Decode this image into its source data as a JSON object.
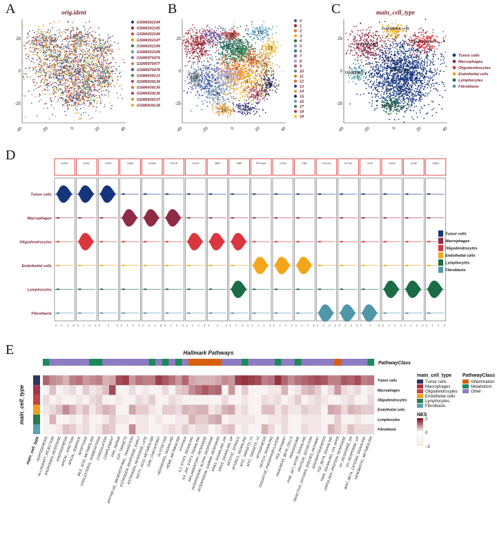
{
  "panels": {
    "A": {
      "letter": "A",
      "title": "orig.ident"
    },
    "B": {
      "letter": "B"
    },
    "C": {
      "letter": "C",
      "title": "main_cell_type"
    },
    "D": {
      "letter": "D"
    },
    "E": {
      "letter": "E"
    }
  },
  "chart_data": [
    {
      "type": "scatter",
      "panel": "A",
      "title": "orig.ident",
      "xlim": [
        -40,
        40
      ],
      "ylim": [
        -40,
        40
      ],
      "x_ticks": [
        "-40",
        "-20",
        "0",
        "20",
        "40"
      ],
      "y_ticks": [
        "-25",
        "0",
        "25"
      ],
      "legend_placement": "right",
      "series": [
        {
          "name": "GSM4202144",
          "color": "#2f3c7e"
        },
        {
          "name": "GSM4202145",
          "color": "#9b2a3a"
        },
        {
          "name": "GSM4202146",
          "color": "#c84a4a"
        },
        {
          "name": "GSM4202147",
          "color": "#e0a020"
        },
        {
          "name": "GSM4202149",
          "color": "#3a7a4a"
        },
        {
          "name": "GSM4202149",
          "color": "#5aa0b0"
        },
        {
          "name": "GSM5975476",
          "color": "#7a6aa8"
        },
        {
          "name": "GSM5975477",
          "color": "#d08040"
        },
        {
          "name": "GSM5975478",
          "color": "#3a5ba0"
        },
        {
          "name": "GSM6939133",
          "color": "#4a8a3a"
        },
        {
          "name": "GSM6939134",
          "color": "#b04a6a"
        },
        {
          "name": "GSM6939135",
          "color": "#e07030"
        },
        {
          "name": "GSM6939136",
          "color": "#8a4a8a"
        },
        {
          "name": "GSM6939137",
          "color": "#c0a040"
        },
        {
          "name": "GSM6939138",
          "color": "#e8a040"
        }
      ]
    },
    {
      "type": "scatter",
      "panel": "B",
      "xlim": [
        -40,
        40
      ],
      "ylim": [
        -40,
        40
      ],
      "x_ticks": [
        "-40",
        "-20",
        "0",
        "20",
        "40"
      ],
      "y_ticks": [
        "-25",
        "0",
        "25"
      ],
      "legend_placement": "right",
      "series": [
        {
          "name": "0",
          "color": "#3a5aa0"
        },
        {
          "name": "1",
          "color": "#9b2a3a"
        },
        {
          "name": "2",
          "color": "#e07030"
        },
        {
          "name": "3",
          "color": "#f0b020"
        },
        {
          "name": "4",
          "color": "#2a6a4a"
        },
        {
          "name": "5",
          "color": "#7090b0"
        },
        {
          "name": "6",
          "color": "#2a7a7a"
        },
        {
          "name": "7",
          "color": "#7a5aa0"
        },
        {
          "name": "8",
          "color": "#a8a0d0"
        },
        {
          "name": "9",
          "color": "#b04a6a"
        },
        {
          "name": "10",
          "color": "#6a7a8a"
        },
        {
          "name": "11",
          "color": "#c08a2a"
        },
        {
          "name": "12",
          "color": "#d86a2a"
        },
        {
          "name": "13",
          "color": "#3a3a7a"
        },
        {
          "name": "14",
          "color": "#e0a040"
        },
        {
          "name": "15",
          "color": "#2a2a5a"
        },
        {
          "name": "16",
          "color": "#5aa0c0"
        },
        {
          "name": "17",
          "color": "#3a8a5a"
        },
        {
          "name": "18",
          "color": "#c04040"
        },
        {
          "name": "19",
          "color": "#f0c040"
        }
      ],
      "cluster_labels": [
        "0",
        "1",
        "2",
        "3",
        "4",
        "5",
        "6",
        "7",
        "8",
        "9",
        "10",
        "11",
        "12",
        "13",
        "14",
        "15",
        "16",
        "17",
        "18",
        "19"
      ]
    },
    {
      "type": "scatter",
      "panel": "C",
      "title": "main_cell_type",
      "xlim": [
        -40,
        40
      ],
      "ylim": [
        -40,
        40
      ],
      "x_ticks": [
        "-40",
        "-20",
        "0",
        "20",
        "40"
      ],
      "y_ticks": [
        "-25",
        "0",
        "25"
      ],
      "legend_placement": "right",
      "series": [
        {
          "name": "Tumor cells",
          "color": "#16347a"
        },
        {
          "name": "Macrophages",
          "color": "#8f2b45"
        },
        {
          "name": "Oligodendrocytes",
          "color": "#d9363e"
        },
        {
          "name": "Endothelial cells",
          "color": "#f2a71b"
        },
        {
          "name": "Lymphocytes",
          "color": "#1b6b47"
        },
        {
          "name": "Fibroblasts",
          "color": "#4f97a8"
        }
      ],
      "cluster_annotations": [
        "Endothelial cells",
        "Macrophages",
        "Oligodendrocytes",
        "Fibroblasts",
        "Tumor cells",
        "Lymphocytes"
      ]
    },
    {
      "type": "violin",
      "panel": "D",
      "genes": [
        "EGFR",
        "SOX2",
        "GFAP",
        "CD68",
        "ITGAM",
        "CSF1R",
        "OLIG2",
        "MBP",
        "MBP",
        "PECAM1",
        "CDH5",
        "VWF",
        "COL1A1",
        "ACTA2",
        "DCN",
        "CD3D",
        "CD3E",
        "CD8A"
      ],
      "cell_types": [
        "Tumor cells",
        "Macrophages",
        "Oligodendrocytes",
        "Endothelial cells",
        "Lymphocytes",
        "Fibroblasts"
      ],
      "colors": [
        "#16347a",
        "#8f2b45",
        "#d9363e",
        "#f2a71b",
        "#1b6b47",
        "#4f97a8"
      ],
      "legend_placement": "right",
      "high_expression": [
        {
          "cell_type": "Tumor cells",
          "gene_index": [
            0,
            1,
            2
          ]
        },
        {
          "cell_type": "Macrophages",
          "gene_index": [
            3,
            4,
            5
          ]
        },
        {
          "cell_type": "Oligodendrocytes",
          "gene_index": [
            1,
            6,
            7,
            8
          ]
        },
        {
          "cell_type": "Endothelial cells",
          "gene_index": [
            9,
            10,
            11
          ]
        },
        {
          "cell_type": "Lymphocytes",
          "gene_index": [
            8,
            15,
            16,
            17
          ]
        },
        {
          "cell_type": "Fibroblasts",
          "gene_index": [
            12,
            13,
            14
          ]
        }
      ],
      "x_axis_labels": [
        [
          "0",
          "2",
          "4",
          "6"
        ],
        [
          "0",
          "1",
          "2",
          "3"
        ],
        [
          "0",
          "2",
          "4"
        ],
        [
          "0",
          "1",
          "2",
          "3"
        ],
        [
          "0",
          "2",
          "4",
          "6"
        ],
        [
          "0",
          "1",
          "2",
          "3"
        ],
        [
          "0",
          "1",
          "2",
          "3"
        ],
        [
          "0",
          "2",
          "4"
        ],
        [
          "0",
          "2",
          "4",
          "6"
        ],
        [
          "0",
          "1",
          "2",
          "3"
        ],
        [
          "0",
          "1",
          "2",
          "3"
        ],
        [
          "0",
          "1",
          "2",
          "3"
        ],
        [
          "0",
          "2",
          "4",
          "6"
        ],
        [
          "0",
          "2",
          "4",
          "6"
        ],
        [
          "0",
          "2",
          "4"
        ],
        [
          "0",
          "1",
          "2",
          "3"
        ],
        [
          "0",
          "1",
          "2",
          "3"
        ],
        [
          "0",
          "1",
          "2",
          "3"
        ]
      ]
    },
    {
      "type": "heatmap",
      "panel": "E",
      "title": "Hallmark Pathways",
      "row_annotation_title": "main_cell_type",
      "col_annotation_title": "PathwayClass",
      "rows": [
        "Tumor cells",
        "Macrophages",
        "Oligodendrocytes",
        "Endothelial cells",
        "Lymphocytes",
        "Fibroblasts"
      ],
      "row_colors": [
        "#2d3561",
        "#a83246",
        "#c84040",
        "#f0a020",
        "#2a7a4a",
        "#5aa0b0"
      ],
      "columns": [
        "ADIPOGENESIS",
        "ALLOGRAFT_REJECTION",
        "ANDROGEN_RESPONSE",
        "ANGIOGENESIS",
        "APICAL_JUNCTION",
        "APICAL_SURFACE",
        "APOPTOSIS",
        "BILE_ACID_METABOLISM",
        "CHOLESTEROL_HOMEOSTASIS",
        "COAGULATION",
        "COMPLEMENT",
        "DNA_REPAIR",
        "E2F_TARGETS",
        "EPITHELIAL_MESENCHYMAL_TRANSITION",
        "ESTROGEN_RESPONSE_EARLY",
        "ESTROGEN_RESPONSE_LATE",
        "FATTY_ACID_METABOLISM",
        "G2M_CHECKPOINT",
        "GLYCOLYSIS",
        "HEDGEHOG_SIGNALING",
        "HEME_METABOLISM",
        "HYPOXIA",
        "IL2_STAT5_SIGNALING",
        "IL6_JAK_STAT3_SIGNALING",
        "INFLAMMATORY_RESPONSE",
        "INTERFERON_ALPHA_RESPONSE",
        "INTERFERON_GAMMA_RESPONSE",
        "KRAS_SIGNALING_DN",
        "KRAS_SIGNALING_UP",
        "MITOTIC_SPINDLE",
        "MTORC1_SIGNALING",
        "MYC_TARGETS_V1",
        "MYC_TARGETS_V2",
        "MYOGENESIS",
        "NOTCH_SIGNALING",
        "OXIDATIVE_PHOSPHORYLATION",
        "P53_PATHWAY",
        "PANCREAS_BETA_CELLS",
        "PEROXISOME",
        "PI3K_AKT_MTOR_SIGNALING",
        "PROTEIN_SECRETION",
        "REACTIVE_OXYGEN_SPECIES_PATHWAY",
        "SPERMATOGENESIS",
        "TGF_BETA_SIGNALING",
        "TNFA_SIGNALING_VIA_NFKB",
        "UNFOLDED_PROTEIN_RESPONSE",
        "UV_RESPONSE_DN",
        "UV_RESPONSE_UP",
        "WNT_BETA_CATENIN_SIGNALING",
        "XENOBIOTIC_METABOLISM"
      ],
      "column_class": [
        "Metabolism",
        "Other",
        "Other",
        "Other",
        "Other",
        "Other",
        "Other",
        "Metabolism",
        "Metabolism",
        "Other",
        "Other",
        "Other",
        "Other",
        "Other",
        "Other",
        "Other",
        "Metabolism",
        "Other",
        "Metabolism",
        "Other",
        "Metabolism",
        "Other",
        "Inflammation",
        "Inflammation",
        "Inflammation",
        "Inflammation",
        "Inflammation",
        "Other",
        "Other",
        "Other",
        "Metabolism",
        "Other",
        "Other",
        "Other",
        "Other",
        "Metabolism",
        "Other",
        "Other",
        "Metabolism",
        "Other",
        "Other",
        "Other",
        "Other",
        "Other",
        "Inflammation",
        "Other",
        "Other",
        "Other",
        "Other",
        "Metabolism"
      ],
      "class_colors": {
        "Inflammation": "#d95f0e",
        "Metabolism": "#1b8a5a",
        "Other": "#8e7cc3"
      },
      "colorbar": {
        "title": "NES",
        "min": -2,
        "max": 2,
        "ticks": [
          "2",
          "0",
          "−2"
        ],
        "low": "#f7ead8",
        "mid": "#ffffff",
        "high": "#7a0010"
      },
      "values": [
        [
          1.2,
          0.9,
          0.8,
          0.6,
          1.0,
          1.1,
          0.8,
          0.9,
          1.0,
          0.6,
          0.7,
          1.4,
          1.5,
          0.8,
          1.1,
          1.0,
          1.0,
          1.5,
          1.3,
          1.1,
          0.8,
          1.2,
          0.7,
          0.6,
          0.6,
          0.6,
          0.7,
          0.9,
          0.8,
          1.5,
          1.6,
          1.5,
          1.4,
          1.0,
          1.1,
          1.6,
          1.2,
          0.9,
          1.1,
          1.2,
          1.3,
          1.4,
          1.3,
          1.0,
          1.0,
          1.3,
          1.2,
          1.4,
          1.0,
          1.1
        ],
        [
          0.1,
          0.5,
          0.1,
          0.2,
          0.3,
          0.1,
          0.4,
          0.2,
          0.3,
          0.5,
          1.4,
          0.1,
          0.1,
          0.3,
          0.1,
          0.2,
          0.1,
          0.1,
          0.3,
          0.1,
          0.4,
          0.5,
          0.9,
          1.1,
          1.3,
          1.1,
          1.2,
          0.1,
          0.8,
          0.1,
          0.4,
          0.1,
          0.1,
          0.1,
          0.2,
          0.2,
          0.6,
          0.1,
          0.2,
          0.5,
          0.6,
          0.4,
          0.1,
          0.3,
          0.8,
          0.3,
          0.2,
          0.3,
          0.1,
          0.2
        ],
        [
          0.3,
          0.1,
          0.2,
          0.1,
          0.1,
          0.2,
          0.1,
          0.3,
          0.4,
          0.1,
          0.1,
          0.2,
          0.1,
          0.1,
          0.3,
          0.2,
          0.4,
          0.1,
          0.1,
          0.3,
          0.2,
          0.1,
          0.1,
          0.1,
          0.1,
          0.1,
          0.1,
          0.3,
          0.1,
          0.1,
          0.2,
          0.1,
          0.1,
          0.3,
          0.2,
          0.3,
          0.1,
          0.2,
          0.4,
          0.1,
          0.2,
          0.3,
          0.2,
          0.1,
          0.1,
          0.2,
          0.3,
          0.1,
          0.1,
          0.3
        ],
        [
          0.2,
          0.3,
          0.5,
          0.9,
          0.6,
          0.3,
          0.5,
          0.2,
          0.4,
          0.6,
          0.5,
          0.1,
          0.1,
          0.7,
          0.4,
          0.4,
          0.2,
          0.1,
          0.4,
          0.4,
          0.3,
          0.6,
          0.5,
          0.6,
          0.6,
          0.2,
          0.3,
          0.6,
          0.7,
          0.2,
          0.3,
          0.1,
          0.1,
          0.5,
          0.5,
          0.2,
          0.4,
          0.2,
          0.2,
          0.4,
          0.3,
          0.3,
          0.1,
          0.7,
          0.6,
          0.3,
          0.6,
          0.5,
          0.4,
          0.4
        ],
        [
          0.1,
          0.6,
          0.1,
          0.1,
          0.2,
          0.1,
          0.3,
          0.1,
          0.1,
          0.2,
          0.4,
          0.2,
          0.2,
          0.1,
          0.2,
          0.2,
          0.1,
          0.2,
          0.1,
          0.1,
          0.2,
          0.2,
          0.6,
          0.4,
          0.4,
          0.6,
          0.7,
          0.1,
          0.2,
          0.2,
          0.2,
          0.2,
          0.1,
          0.1,
          0.2,
          0.2,
          0.3,
          0.1,
          0.1,
          0.2,
          0.2,
          0.2,
          0.1,
          0.1,
          0.4,
          0.1,
          0.1,
          0.2,
          0.1,
          0.1
        ],
        [
          0.1,
          0.1,
          0.2,
          0.5,
          0.4,
          0.2,
          0.3,
          0.1,
          0.2,
          0.5,
          0.4,
          0.1,
          0.1,
          0.9,
          0.2,
          0.2,
          0.1,
          0.1,
          0.2,
          0.3,
          0.2,
          0.4,
          0.2,
          0.3,
          0.3,
          0.1,
          0.2,
          0.4,
          0.5,
          0.1,
          0.2,
          0.1,
          0.1,
          0.6,
          0.3,
          0.1,
          0.3,
          0.1,
          0.1,
          0.3,
          0.2,
          0.2,
          0.1,
          0.6,
          0.4,
          0.2,
          0.5,
          0.3,
          0.3,
          0.3
        ]
      ]
    }
  ]
}
